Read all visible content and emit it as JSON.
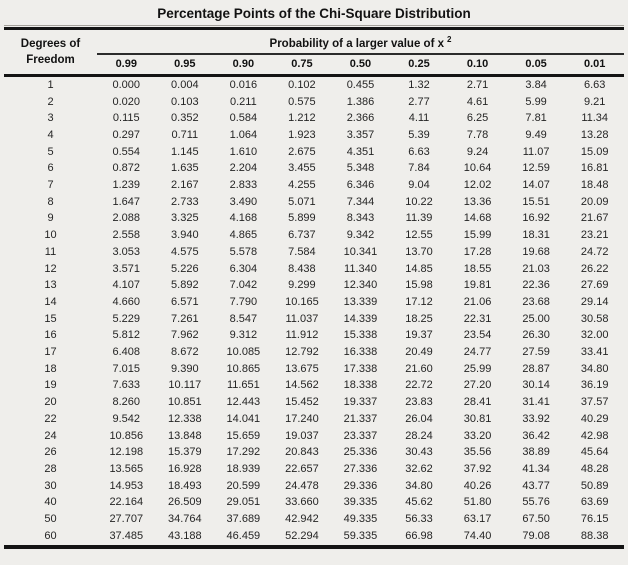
{
  "title": "Percentage Points of the Chi-Square Distribution",
  "colors": {
    "background": "#efeeeb",
    "rule": "#141414",
    "text": "#1f1f1f"
  },
  "table": {
    "row_header": {
      "line1": "Degrees of",
      "line2": "Freedom"
    },
    "group_header": {
      "text": "Probability of a larger value of x",
      "sup": "2"
    },
    "columns": [
      "0.99",
      "0.95",
      "0.90",
      "0.75",
      "0.50",
      "0.25",
      "0.10",
      "0.05",
      "0.01"
    ],
    "rows": [
      {
        "df": "1",
        "values": [
          "0.000",
          "0.004",
          "0.016",
          "0.102",
          "0.455",
          "1.32",
          "2.71",
          "3.84",
          "6.63"
        ]
      },
      {
        "df": "2",
        "values": [
          "0.020",
          "0.103",
          "0.211",
          "0.575",
          "1.386",
          "2.77",
          "4.61",
          "5.99",
          "9.21"
        ]
      },
      {
        "df": "3",
        "values": [
          "0.115",
          "0.352",
          "0.584",
          "1.212",
          "2.366",
          "4.11",
          "6.25",
          "7.81",
          "11.34"
        ]
      },
      {
        "df": "4",
        "values": [
          "0.297",
          "0.711",
          "1.064",
          "1.923",
          "3.357",
          "5.39",
          "7.78",
          "9.49",
          "13.28"
        ]
      },
      {
        "df": "5",
        "values": [
          "0.554",
          "1.145",
          "1.610",
          "2.675",
          "4.351",
          "6.63",
          "9.24",
          "11.07",
          "15.09"
        ]
      },
      {
        "df": "6",
        "values": [
          "0.872",
          "1.635",
          "2.204",
          "3.455",
          "5.348",
          "7.84",
          "10.64",
          "12.59",
          "16.81"
        ]
      },
      {
        "df": "7",
        "values": [
          "1.239",
          "2.167",
          "2.833",
          "4.255",
          "6.346",
          "9.04",
          "12.02",
          "14.07",
          "18.48"
        ]
      },
      {
        "df": "8",
        "values": [
          "1.647",
          "2.733",
          "3.490",
          "5.071",
          "7.344",
          "10.22",
          "13.36",
          "15.51",
          "20.09"
        ]
      },
      {
        "df": "9",
        "values": [
          "2.088",
          "3.325",
          "4.168",
          "5.899",
          "8.343",
          "11.39",
          "14.68",
          "16.92",
          "21.67"
        ]
      },
      {
        "df": "10",
        "values": [
          "2.558",
          "3.940",
          "4.865",
          "6.737",
          "9.342",
          "12.55",
          "15.99",
          "18.31",
          "23.21"
        ]
      },
      {
        "df": "11",
        "values": [
          "3.053",
          "4.575",
          "5.578",
          "7.584",
          "10.341",
          "13.70",
          "17.28",
          "19.68",
          "24.72"
        ]
      },
      {
        "df": "12",
        "values": [
          "3.571",
          "5.226",
          "6.304",
          "8.438",
          "11.340",
          "14.85",
          "18.55",
          "21.03",
          "26.22"
        ]
      },
      {
        "df": "13",
        "values": [
          "4.107",
          "5.892",
          "7.042",
          "9.299",
          "12.340",
          "15.98",
          "19.81",
          "22.36",
          "27.69"
        ]
      },
      {
        "df": "14",
        "values": [
          "4.660",
          "6.571",
          "7.790",
          "10.165",
          "13.339",
          "17.12",
          "21.06",
          "23.68",
          "29.14"
        ]
      },
      {
        "df": "15",
        "values": [
          "5.229",
          "7.261",
          "8.547",
          "11.037",
          "14.339",
          "18.25",
          "22.31",
          "25.00",
          "30.58"
        ]
      },
      {
        "df": "16",
        "values": [
          "5.812",
          "7.962",
          "9.312",
          "11.912",
          "15.338",
          "19.37",
          "23.54",
          "26.30",
          "32.00"
        ]
      },
      {
        "df": "17",
        "values": [
          "6.408",
          "8.672",
          "10.085",
          "12.792",
          "16.338",
          "20.49",
          "24.77",
          "27.59",
          "33.41"
        ]
      },
      {
        "df": "18",
        "values": [
          "7.015",
          "9.390",
          "10.865",
          "13.675",
          "17.338",
          "21.60",
          "25.99",
          "28.87",
          "34.80"
        ]
      },
      {
        "df": "19",
        "values": [
          "7.633",
          "10.117",
          "11.651",
          "14.562",
          "18.338",
          "22.72",
          "27.20",
          "30.14",
          "36.19"
        ]
      },
      {
        "df": "20",
        "values": [
          "8.260",
          "10.851",
          "12.443",
          "15.452",
          "19.337",
          "23.83",
          "28.41",
          "31.41",
          "37.57"
        ]
      },
      {
        "df": "22",
        "values": [
          "9.542",
          "12.338",
          "14.041",
          "17.240",
          "21.337",
          "26.04",
          "30.81",
          "33.92",
          "40.29"
        ]
      },
      {
        "df": "24",
        "values": [
          "10.856",
          "13.848",
          "15.659",
          "19.037",
          "23.337",
          "28.24",
          "33.20",
          "36.42",
          "42.98"
        ]
      },
      {
        "df": "26",
        "values": [
          "12.198",
          "15.379",
          "17.292",
          "20.843",
          "25.336",
          "30.43",
          "35.56",
          "38.89",
          "45.64"
        ]
      },
      {
        "df": "28",
        "values": [
          "13.565",
          "16.928",
          "18.939",
          "22.657",
          "27.336",
          "32.62",
          "37.92",
          "41.34",
          "48.28"
        ]
      },
      {
        "df": "30",
        "values": [
          "14.953",
          "18.493",
          "20.599",
          "24.478",
          "29.336",
          "34.80",
          "40.26",
          "43.77",
          "50.89"
        ]
      },
      {
        "df": "40",
        "values": [
          "22.164",
          "26.509",
          "29.051",
          "33.660",
          "39.335",
          "45.62",
          "51.80",
          "55.76",
          "63.69"
        ]
      },
      {
        "df": "50",
        "values": [
          "27.707",
          "34.764",
          "37.689",
          "42.942",
          "49.335",
          "56.33",
          "63.17",
          "67.50",
          "76.15"
        ]
      },
      {
        "df": "60",
        "values": [
          "37.485",
          "43.188",
          "46.459",
          "52.294",
          "59.335",
          "66.98",
          "74.40",
          "79.08",
          "88.38"
        ]
      }
    ]
  }
}
